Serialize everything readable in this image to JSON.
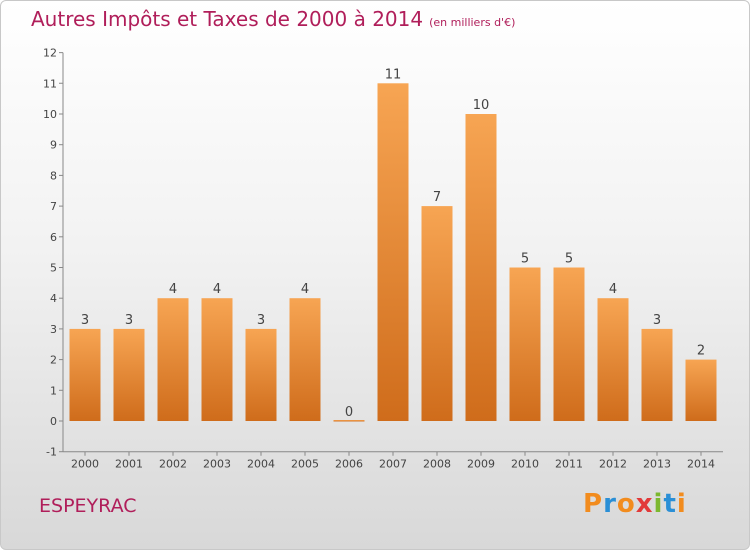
{
  "header": {
    "title": "Autres Impôts et Taxes de 2000 à 2014",
    "subtitle": "(en milliers d'€)"
  },
  "footer": {
    "commune": "ESPEYRAC",
    "logo_letters": [
      "P",
      "r",
      "o",
      "x",
      "i",
      "t",
      "i"
    ],
    "logo_colors": [
      "#f28c1e",
      "#2a8fd6",
      "#f28c1e",
      "#e23a3a",
      "#7cb82f",
      "#2a8fd6",
      "#f28c1e"
    ]
  },
  "colors": {
    "bar_light": "#f7a553",
    "bar_dark": "#cf6c1b",
    "title": "#b01e5a",
    "text": "#444444"
  },
  "chart_data": {
    "type": "bar",
    "title": "Autres Impôts et Taxes de 2000 à 2014",
    "subtitle": "(en milliers d'€)",
    "categories": [
      "2000",
      "2001",
      "2002",
      "2003",
      "2004",
      "2005",
      "2006",
      "2007",
      "2008",
      "2009",
      "2010",
      "2011",
      "2012",
      "2013",
      "2014"
    ],
    "values": [
      3,
      3,
      4,
      4,
      3,
      4,
      0,
      11,
      7,
      10,
      5,
      5,
      4,
      3,
      2
    ],
    "ylim": [
      -1,
      12
    ],
    "yticks": [
      -1,
      0,
      1,
      2,
      3,
      4,
      5,
      6,
      7,
      8,
      9,
      10,
      11,
      12
    ],
    "grid": false,
    "legend": "none"
  }
}
